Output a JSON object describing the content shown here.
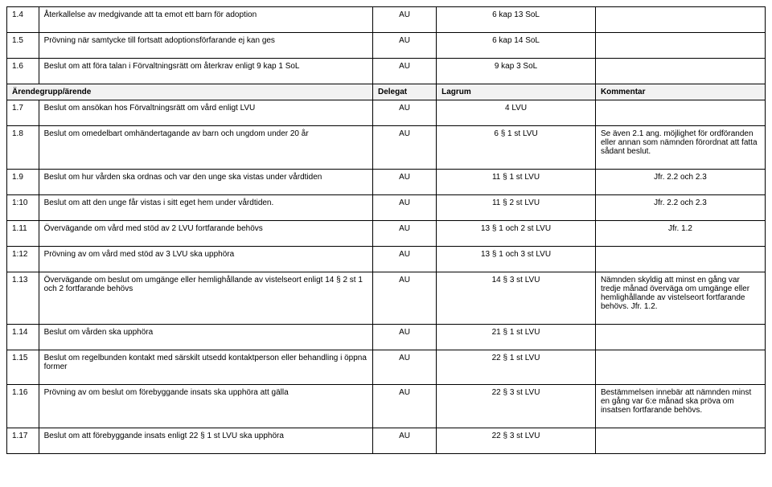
{
  "columns": {
    "num": "",
    "desc": "Ärendegrupp/ärende",
    "delegat": "Delegat",
    "lagrum": "Lagrum",
    "kommentar": "Kommentar"
  },
  "rows": {
    "r00": {
      "num": "1.4",
      "desc": "Återkallelse av medgivande att ta emot ett barn för adoption",
      "delegat": "AU",
      "lagrum": "6 kap 13 SoL",
      "kommentar": ""
    },
    "r01": {
      "num": "1.5",
      "desc": "Prövning när samtycke till fortsatt adoptionsförfarande ej kan ges",
      "delegat": "AU",
      "lagrum": "6 kap 14 SoL",
      "kommentar": ""
    },
    "r02": {
      "num": "1.6",
      "desc": "Beslut om att föra talan i Förvaltningsrätt om återkrav enligt 9 kap 1 SoL",
      "delegat": "AU",
      "lagrum": "9 kap 3 SoL",
      "kommentar": ""
    },
    "r03": {
      "num": "1.7",
      "desc": "Beslut om ansökan hos Förvaltningsrätt om vård enligt LVU",
      "delegat": "AU",
      "lagrum": "4 LVU",
      "kommentar": ""
    },
    "r04": {
      "num": "1.8",
      "desc": "Beslut om omedelbart omhändertagande av barn och ungdom under 20 år",
      "delegat": "AU",
      "lagrum": "6 § 1 st LVU",
      "kommentar": "Se även 2.1 ang. möjlighet för ordföranden eller annan som nämnden förordnat att fatta sådant beslut."
    },
    "r05": {
      "num": "1.9",
      "desc": "Beslut om hur vården ska ordnas och var den unge ska vistas under vårdtiden",
      "delegat": "AU",
      "lagrum": "11 § 1 st LVU",
      "kommentar": "Jfr. 2.2 och 2.3"
    },
    "r06": {
      "num": "1:10",
      "desc": "Beslut om att den unge får vistas i sitt eget hem under vårdtiden.",
      "delegat": "AU",
      "lagrum": "11 § 2 st LVU",
      "kommentar": "Jfr. 2.2 och 2.3"
    },
    "r07": {
      "num": "1.11",
      "desc": "Övervägande om vård med stöd av 2 LVU fortfarande behövs",
      "delegat": "AU",
      "lagrum": "13 § 1 och 2 st LVU",
      "kommentar": "Jfr. 1.2"
    },
    "r08": {
      "num": "1:12",
      "desc": "Prövning av om vård med stöd av 3 LVU ska upphöra",
      "delegat": "AU",
      "lagrum": "13 § 1 och 3 st LVU",
      "kommentar": ""
    },
    "r09": {
      "num": "1.13",
      "desc": "Övervägande om beslut om umgänge eller hemlighållande av vistelseort enligt 14 § 2 st 1 och 2 fortfarande behövs",
      "delegat": "AU",
      "lagrum": "14 § 3 st LVU",
      "kommentar": "Nämnden skyldig att minst en gång var tredje månad överväga om umgänge eller hemlighållande av vistelseort fortfarande behövs. Jfr. 1.2."
    },
    "r10": {
      "num": "1.14",
      "desc": "Beslut om vården ska upphöra",
      "delegat": "AU",
      "lagrum": "21 § 1 st LVU",
      "kommentar": ""
    },
    "r11": {
      "num": "1.15",
      "desc": "Beslut om regelbunden kontakt med särskilt utsedd kontaktperson eller behandling i öppna former",
      "delegat": "AU",
      "lagrum": "22 § 1 st LVU",
      "kommentar": ""
    },
    "r12": {
      "num": "1.16",
      "desc": "Prövning av om beslut om förebyggande insats ska upphöra att gälla",
      "delegat": "AU",
      "lagrum": "22 § 3 st LVU",
      "kommentar": "Bestämmelsen innebär att nämnden minst en gång var 6:e månad ska pröva om insatsen fortfarande behövs."
    },
    "r13": {
      "num": "1.17",
      "desc": "Beslut om att förebyggande insats enligt 22 § 1 st LVU ska upphöra",
      "delegat": "AU",
      "lagrum": "22 § 3 st LVU",
      "kommentar": ""
    }
  }
}
